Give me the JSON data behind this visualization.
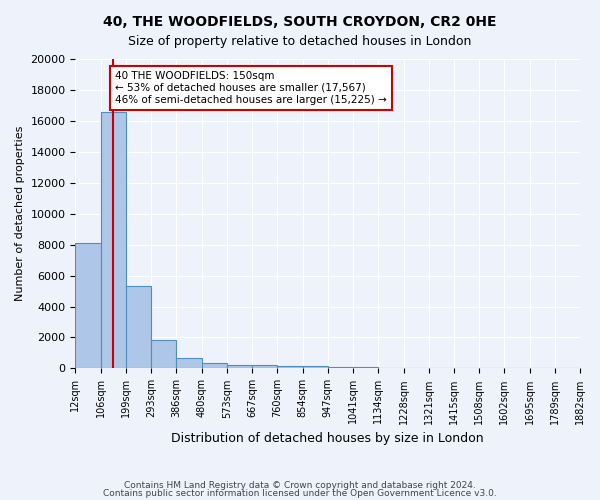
{
  "title1": "40, THE WOODFIELDS, SOUTH CROYDON, CR2 0HE",
  "title2": "Size of property relative to detached houses in London",
  "xlabel": "Distribution of detached houses by size in London",
  "ylabel": "Number of detached properties",
  "bin_edges": [
    12,
    106,
    199,
    293,
    386,
    480,
    573,
    667,
    760,
    854,
    947,
    1041,
    1134,
    1228,
    1321,
    1415,
    1508,
    1602,
    1695,
    1789,
    1882
  ],
  "bin_labels": [
    "12sqm",
    "106sqm",
    "199sqm",
    "293sqm",
    "386sqm",
    "480sqm",
    "573sqm",
    "667sqm",
    "760sqm",
    "854sqm",
    "947sqm",
    "1041sqm",
    "1134sqm",
    "1228sqm",
    "1321sqm",
    "1415sqm",
    "1508sqm",
    "1602sqm",
    "1695sqm",
    "1789sqm",
    "1882sqm"
  ],
  "bar_heights": [
    8100,
    16600,
    5300,
    1850,
    700,
    350,
    250,
    225,
    175,
    150,
    100,
    80,
    60,
    50,
    40,
    30,
    25,
    20,
    15,
    10
  ],
  "bar_color": "#aec6e8",
  "bar_edge_color": "#4f8fbf",
  "background_color": "#eef2fa",
  "grid_color": "#ffffff",
  "property_sqm": 150,
  "property_line_color": "#cc0000",
  "annotation_text": "40 THE WOODFIELDS: 150sqm\n← 53% of detached houses are smaller (17,567)\n46% of semi-detached houses are larger (15,225) →",
  "annotation_box_color": "#ffffff",
  "annotation_box_edge": "#cc0000",
  "ylim": [
    0,
    20000
  ],
  "yticks": [
    0,
    2000,
    4000,
    6000,
    8000,
    10000,
    12000,
    14000,
    16000,
    18000,
    20000
  ],
  "footer1": "Contains HM Land Registry data © Crown copyright and database right 2024.",
  "footer2": "Contains public sector information licensed under the Open Government Licence v3.0."
}
